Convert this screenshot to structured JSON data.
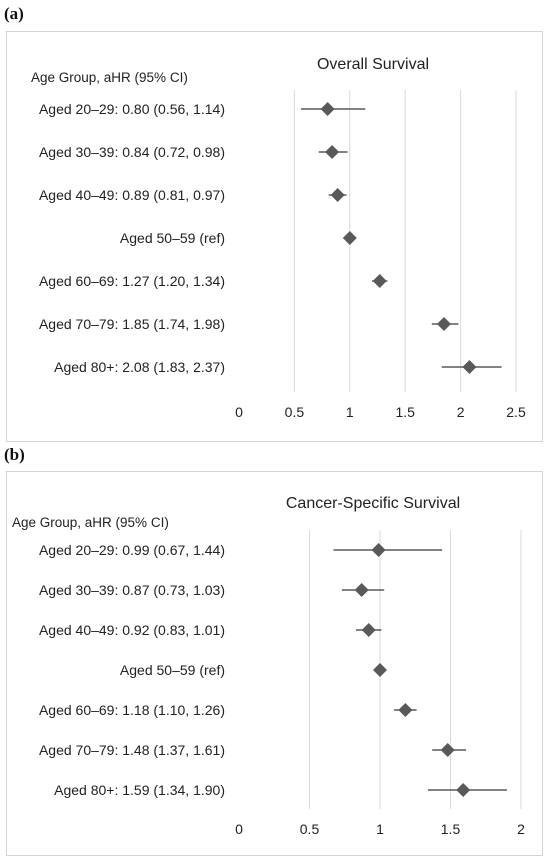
{
  "panels": [
    {
      "label": "(a)",
      "chart_data": {
        "type": "scatter",
        "subtype": "forest-plot",
        "title": "Overall Survival",
        "header": "Age Group, aHR (95% CI)",
        "row_labels": [
          "Aged 20–29: 0.80 (0.56, 1.14)",
          "Aged 30–39: 0.84 (0.72, 0.98)",
          "Aged 40–49: 0.89 (0.81, 0.97)",
          "Aged 50–59 (ref)",
          "Aged 60–69: 1.27 (1.20, 1.34)",
          "Aged 70–79: 1.85 (1.74, 1.98)",
          "Aged 80+: 2.08 (1.83, 2.37)"
        ],
        "estimates": [
          0.8,
          0.84,
          0.89,
          1.0,
          1.27,
          1.85,
          2.08
        ],
        "ci_lower": [
          0.56,
          0.72,
          0.81,
          null,
          1.2,
          1.74,
          1.83
        ],
        "ci_upper": [
          1.14,
          0.98,
          0.97,
          null,
          1.34,
          1.98,
          2.37
        ],
        "x_ticks": [
          "0",
          "0.5",
          "1",
          "1.5",
          "2",
          "2.5"
        ],
        "xlim": [
          0,
          2.5
        ],
        "grid": true,
        "marker_color": "#595959",
        "grid_color": "#d9d9d9"
      }
    },
    {
      "label": "(b)",
      "chart_data": {
        "type": "scatter",
        "subtype": "forest-plot",
        "title": "Cancer-Specific Survival",
        "header": "Age Group, aHR (95% CI)",
        "row_labels": [
          "Aged 20–29: 0.99 (0.67, 1.44)",
          "Aged 30–39: 0.87 (0.73, 1.03)",
          "Aged 40–49: 0.92 (0.83, 1.01)",
          "Aged 50–59 (ref)",
          "Aged 60–69: 1.18 (1.10, 1.26)",
          "Aged 70–79: 1.48 (1.37, 1.61)",
          "Aged 80+: 1.59 (1.34, 1.90)"
        ],
        "estimates": [
          0.99,
          0.87,
          0.92,
          1.0,
          1.18,
          1.48,
          1.59
        ],
        "ci_lower": [
          0.67,
          0.73,
          0.83,
          null,
          1.1,
          1.37,
          1.34
        ],
        "ci_upper": [
          1.44,
          1.03,
          1.01,
          null,
          1.26,
          1.61,
          1.9
        ],
        "x_ticks": [
          "0",
          "0.5",
          "1",
          "1.5",
          "2"
        ],
        "xlim": [
          0,
          2
        ],
        "grid": true,
        "marker_color": "#595959",
        "grid_color": "#d9d9d9"
      }
    }
  ]
}
